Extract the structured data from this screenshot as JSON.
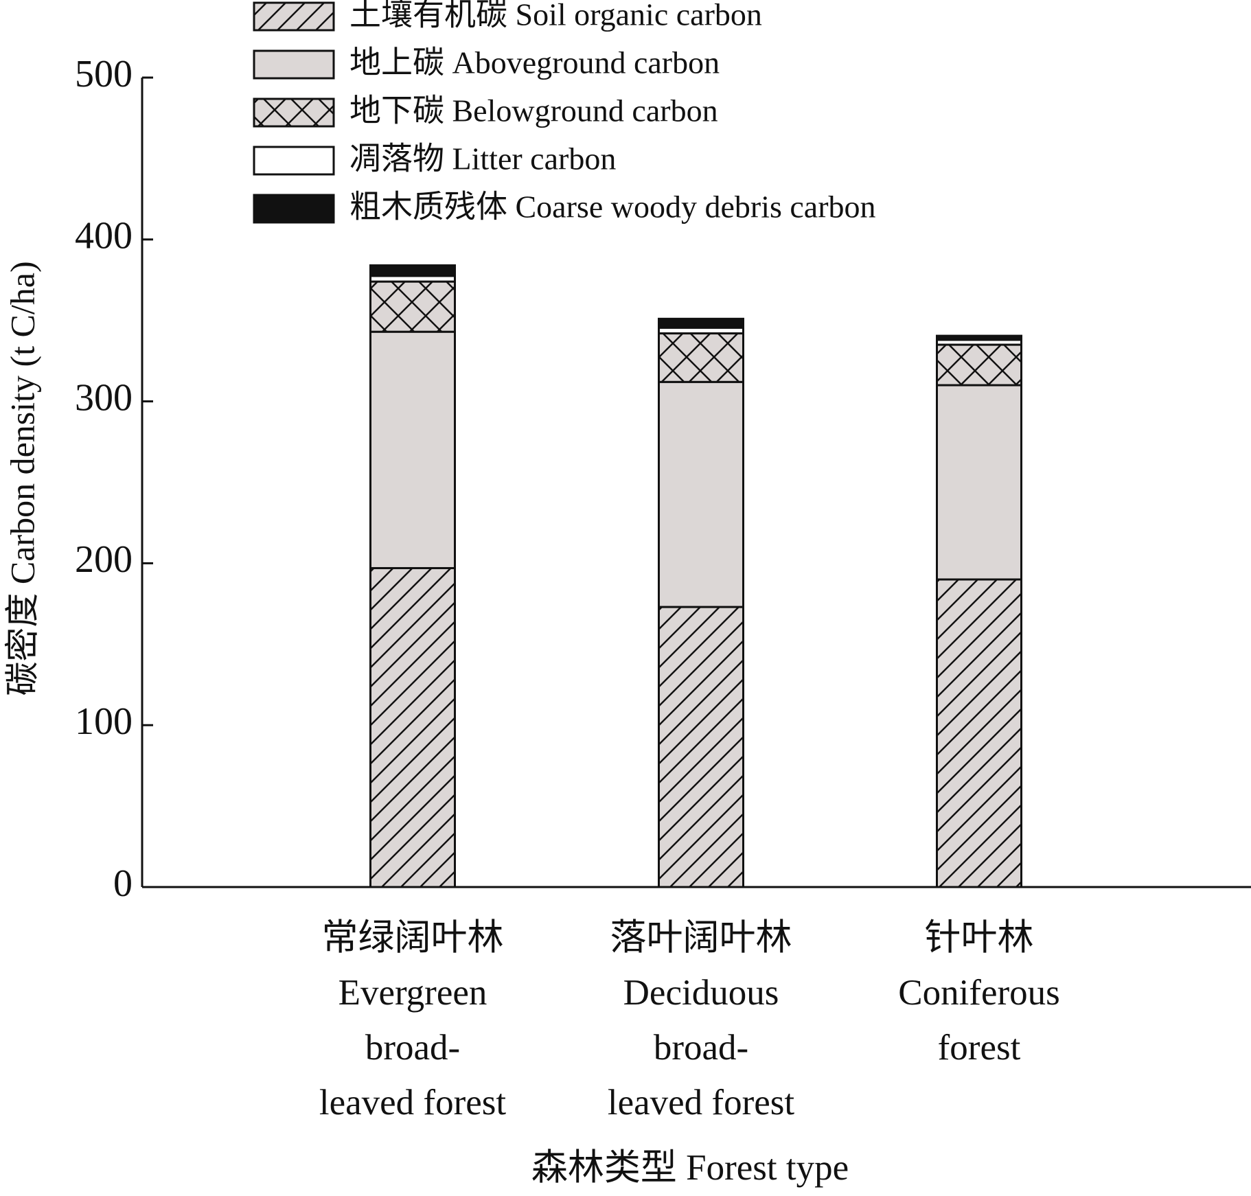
{
  "chart_data": {
    "type": "stacked-bar",
    "y_label": "碳密度 Carbon density (t C/ha)",
    "x_label": "森林类型 Forest type",
    "categories": [
      [
        "常绿阔叶林",
        "Evergreen",
        "broad-",
        "leaved forest"
      ],
      [
        "落叶阔叶林",
        "Deciduous",
        "broad-",
        "leaved forest"
      ],
      [
        "针叶林",
        "Coniferous",
        "forest"
      ]
    ],
    "series": [
      {
        "name": "土壤有机碳 Soil organic carbon",
        "color": "#dcd7d6",
        "pattern": "hatch",
        "values": [
          197,
          173,
          190
        ]
      },
      {
        "name": "地上碳 Aboveground carbon",
        "color": "#dcd7d6",
        "pattern": "solid",
        "values": [
          146,
          139,
          120
        ]
      },
      {
        "name": "地下碳 Belowground carbon",
        "color": "#dcd7d6",
        "pattern": "crosshatch",
        "values": [
          31,
          30,
          25
        ]
      },
      {
        "name": "凋落物 Litter carbon",
        "color": "#ffffff",
        "pattern": "solid",
        "values": [
          3.5,
          3.5,
          3
        ]
      },
      {
        "name": "粗木质残体 Coarse woody debris carbon",
        "color": "#111111",
        "pattern": "solid",
        "values": [
          6.5,
          5.5,
          2.5
        ]
      }
    ],
    "ylim": [
      0,
      500
    ],
    "yticks": [
      0,
      100,
      200,
      300,
      400,
      500
    ],
    "grid": false,
    "legend": "top"
  }
}
